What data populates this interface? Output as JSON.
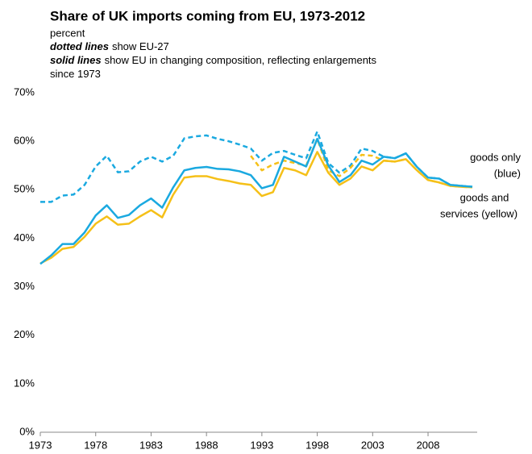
{
  "chart_data": {
    "type": "line",
    "title": "Share of UK imports coming from EU, 1973-2012",
    "subtitle": "percent",
    "notes": [
      {
        "emphasis": "dotted lines",
        "text": "show EU-27"
      },
      {
        "emphasis": "solid lines",
        "text": "show EU in changing composition, reflecting enlargements"
      },
      {
        "text": "since 1973"
      }
    ],
    "annotations": [
      {
        "lines": [
          "goods only",
          "(blue)"
        ]
      },
      {
        "lines": [
          "goods and",
          "services (yellow)"
        ]
      }
    ],
    "x": [
      1973,
      1974,
      1975,
      1976,
      1977,
      1978,
      1979,
      1980,
      1981,
      1982,
      1983,
      1984,
      1985,
      1986,
      1987,
      1988,
      1989,
      1990,
      1991,
      1992,
      1993,
      1994,
      1995,
      1996,
      1997,
      1998,
      1999,
      2000,
      2001,
      2002,
      2003,
      2004,
      2005,
      2006,
      2007,
      2008,
      2009,
      2010,
      2011,
      2012
    ],
    "series": [
      {
        "color": "#1aa9e0",
        "dashed": true,
        "values": [
          47.5,
          47.5,
          48.8,
          49.0,
          51.0,
          54.8,
          57.0,
          53.6,
          53.8,
          55.8,
          56.8,
          55.8,
          57.0,
          60.6,
          61.0,
          61.2,
          60.5,
          60.0,
          59.3,
          58.5,
          56.0,
          57.6,
          58.0,
          57.2,
          56.5,
          62.0,
          55.5,
          53.5,
          55.0,
          58.5,
          58.0,
          56.8,
          56.5,
          57.5,
          54.7,
          52.5,
          52.3,
          51.0,
          50.8,
          50.6
        ]
      },
      {
        "color": "#f5c018",
        "dashed": true,
        "values": [
          null,
          null,
          null,
          null,
          null,
          null,
          null,
          null,
          null,
          null,
          null,
          null,
          null,
          null,
          null,
          null,
          null,
          null,
          null,
          57.0,
          54.0,
          55.2,
          56.0,
          55.5,
          55.0,
          60.5,
          54.0,
          52.8,
          54.5,
          57.2,
          57.0,
          56.0,
          55.8,
          56.3,
          54.0,
          52.0,
          51.5,
          50.8,
          50.6,
          50.5
        ]
      },
      {
        "color": "#f5c018",
        "dashed": false,
        "values": [
          34.8,
          36.0,
          37.8,
          38.2,
          40.3,
          43.0,
          44.5,
          42.8,
          43.0,
          44.5,
          45.8,
          44.3,
          49.0,
          52.5,
          52.8,
          52.8,
          52.2,
          51.8,
          51.3,
          51.0,
          48.7,
          49.5,
          54.5,
          54.0,
          53.0,
          57.8,
          53.5,
          51.0,
          52.3,
          54.8,
          54.0,
          56.0,
          55.8,
          56.3,
          54.0,
          52.0,
          51.5,
          50.8,
          50.6,
          50.5
        ]
      },
      {
        "color": "#1aa9e0",
        "dashed": false,
        "values": [
          34.7,
          36.5,
          38.8,
          38.8,
          41.2,
          44.7,
          46.8,
          44.2,
          44.8,
          46.8,
          48.2,
          46.3,
          50.5,
          54.0,
          54.5,
          54.7,
          54.3,
          54.2,
          53.8,
          53.0,
          50.3,
          51.0,
          56.8,
          55.8,
          54.8,
          60.5,
          55.0,
          51.6,
          53.0,
          56.0,
          55.2,
          56.8,
          56.5,
          57.5,
          54.7,
          52.5,
          52.3,
          51.0,
          50.8,
          50.6
        ]
      }
    ],
    "xlim": [
      1973,
      2012
    ],
    "xticks": [
      1973,
      1978,
      1983,
      1988,
      1993,
      1998,
      2003,
      2008
    ],
    "ylim": [
      0,
      70
    ],
    "yticks": [
      {
        "value": 0,
        "label": "0%"
      },
      {
        "value": 10,
        "label": "10%"
      },
      {
        "value": 20,
        "label": "20%"
      },
      {
        "value": 30,
        "label": "30%"
      },
      {
        "value": 40,
        "label": "40%"
      },
      {
        "value": 50,
        "label": "50%"
      },
      {
        "value": 60,
        "label": "60%"
      },
      {
        "value": 70,
        "label": "70%"
      }
    ],
    "grid": false
  }
}
